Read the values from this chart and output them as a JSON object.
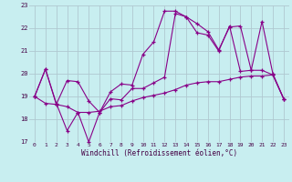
{
  "title": "",
  "xlabel": "Windchill (Refroidissement éolien,°C)",
  "ylabel": "",
  "background_color": "#c8eef0",
  "line_color": "#880088",
  "grid_color": "#b0c8d0",
  "xlim": [
    -0.5,
    23.5
  ],
  "ylim": [
    17,
    23
  ],
  "yticks": [
    17,
    18,
    19,
    20,
    21,
    22,
    23
  ],
  "xticks": [
    0,
    1,
    2,
    3,
    4,
    5,
    6,
    7,
    8,
    9,
    10,
    11,
    12,
    13,
    14,
    15,
    16,
    17,
    18,
    19,
    20,
    21,
    22,
    23
  ],
  "line1": [
    19.0,
    20.2,
    18.7,
    17.5,
    18.3,
    17.0,
    18.3,
    18.9,
    18.85,
    19.35,
    19.35,
    19.6,
    19.85,
    22.65,
    22.5,
    21.8,
    21.7,
    21.0,
    22.1,
    20.1,
    20.15,
    20.15,
    19.95,
    18.9
  ],
  "line2": [
    19.0,
    20.2,
    18.65,
    19.7,
    19.65,
    18.8,
    18.3,
    19.2,
    19.55,
    19.5,
    20.85,
    21.4,
    22.75,
    22.75,
    22.5,
    22.2,
    21.85,
    21.05,
    22.05,
    22.1,
    20.15,
    22.3,
    20.0,
    18.9
  ],
  "line3": [
    19.0,
    18.7,
    18.65,
    18.55,
    18.3,
    18.3,
    18.35,
    18.55,
    18.6,
    18.8,
    18.95,
    19.05,
    19.15,
    19.3,
    19.5,
    19.6,
    19.65,
    19.65,
    19.75,
    19.85,
    19.9,
    19.9,
    19.95,
    18.9
  ]
}
